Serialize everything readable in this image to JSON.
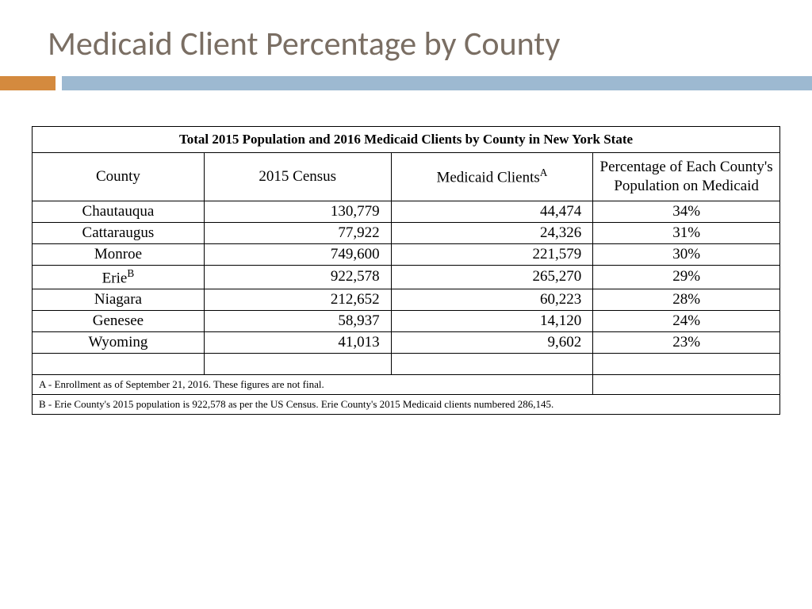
{
  "slide": {
    "title": "Medicaid Client Percentage by County",
    "accent_orange": "#d48a3e",
    "accent_blue": "#9db9d1",
    "title_color": "#7a6e63"
  },
  "table": {
    "caption": "Total 2015 Population and 2016 Medicaid Clients by County in New York State",
    "columns": {
      "county": "County",
      "census": "2015 Census",
      "clients_pre": "Medicaid Clients",
      "clients_sup": "A",
      "pct": "Percentage of Each County's Population on Medicaid"
    },
    "rows": [
      {
        "county": "Chautauqua",
        "sup": "",
        "census": "130,779",
        "clients": "44,474",
        "pct": "34%"
      },
      {
        "county": "Cattaraugus",
        "sup": "",
        "census": "77,922",
        "clients": "24,326",
        "pct": "31%"
      },
      {
        "county": "Monroe",
        "sup": "",
        "census": "749,600",
        "clients": "221,579",
        "pct": "30%"
      },
      {
        "county": "Erie",
        "sup": "B",
        "census": "922,578",
        "clients": "265,270",
        "pct": "29%"
      },
      {
        "county": "Niagara",
        "sup": "",
        "census": "212,652",
        "clients": "60,223",
        "pct": "28%"
      },
      {
        "county": "Genesee",
        "sup": "",
        "census": "58,937",
        "clients": "14,120",
        "pct": "24%"
      },
      {
        "county": "Wyoming",
        "sup": "",
        "census": "41,013",
        "clients": "9,602",
        "pct": "23%"
      }
    ],
    "footnotes": {
      "a": "A - Enrollment as of September 21, 2016.  These figures are not final.",
      "b": "B - Erie County's 2015 population is 922,578 as per the US Census.  Erie County's 2015 Medicaid clients numbered  286,145."
    }
  }
}
